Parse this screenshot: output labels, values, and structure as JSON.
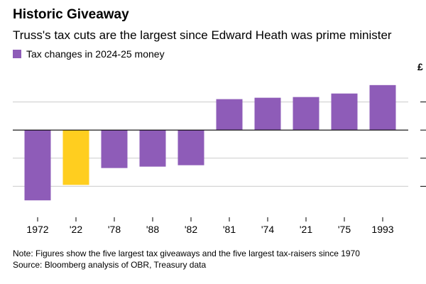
{
  "title": "Historic Giveaway",
  "subtitle": "Truss's tax cuts are the largest since Edward Heath was prime minister",
  "legend": {
    "label": "Tax changes in 2024-25 money",
    "color": "#8e5cb8"
  },
  "unit_label": "£",
  "notes": {
    "note": "Note: Figures show the five largest tax giveaways and the five largest tax-raisers since 1970",
    "source": "Source: Bloomberg analysis of OBR, Treasury data"
  },
  "colors": {
    "positive": "#8e5cb8",
    "highlight": "#ffce1f",
    "grid": "#cccccc",
    "zero": "#000000"
  },
  "chart_data": {
    "type": "bar",
    "title": "Historic Giveaway",
    "xlabel": "",
    "ylabel": "Tax changes in 2024-25 money (£)",
    "categories": [
      "1972",
      "'22",
      "'78",
      "'88",
      "'82",
      "'81",
      "'74",
      "'21",
      "'75",
      "1993"
    ],
    "values": [
      -50,
      -39,
      -27,
      -26,
      -25,
      22,
      23,
      23.5,
      26,
      32
    ],
    "highlight_index": 1,
    "ylim": [
      -60,
      40
    ],
    "gridlines": [
      20,
      0,
      -20,
      -40
    ],
    "grid": true,
    "legend_position": "top-left"
  }
}
